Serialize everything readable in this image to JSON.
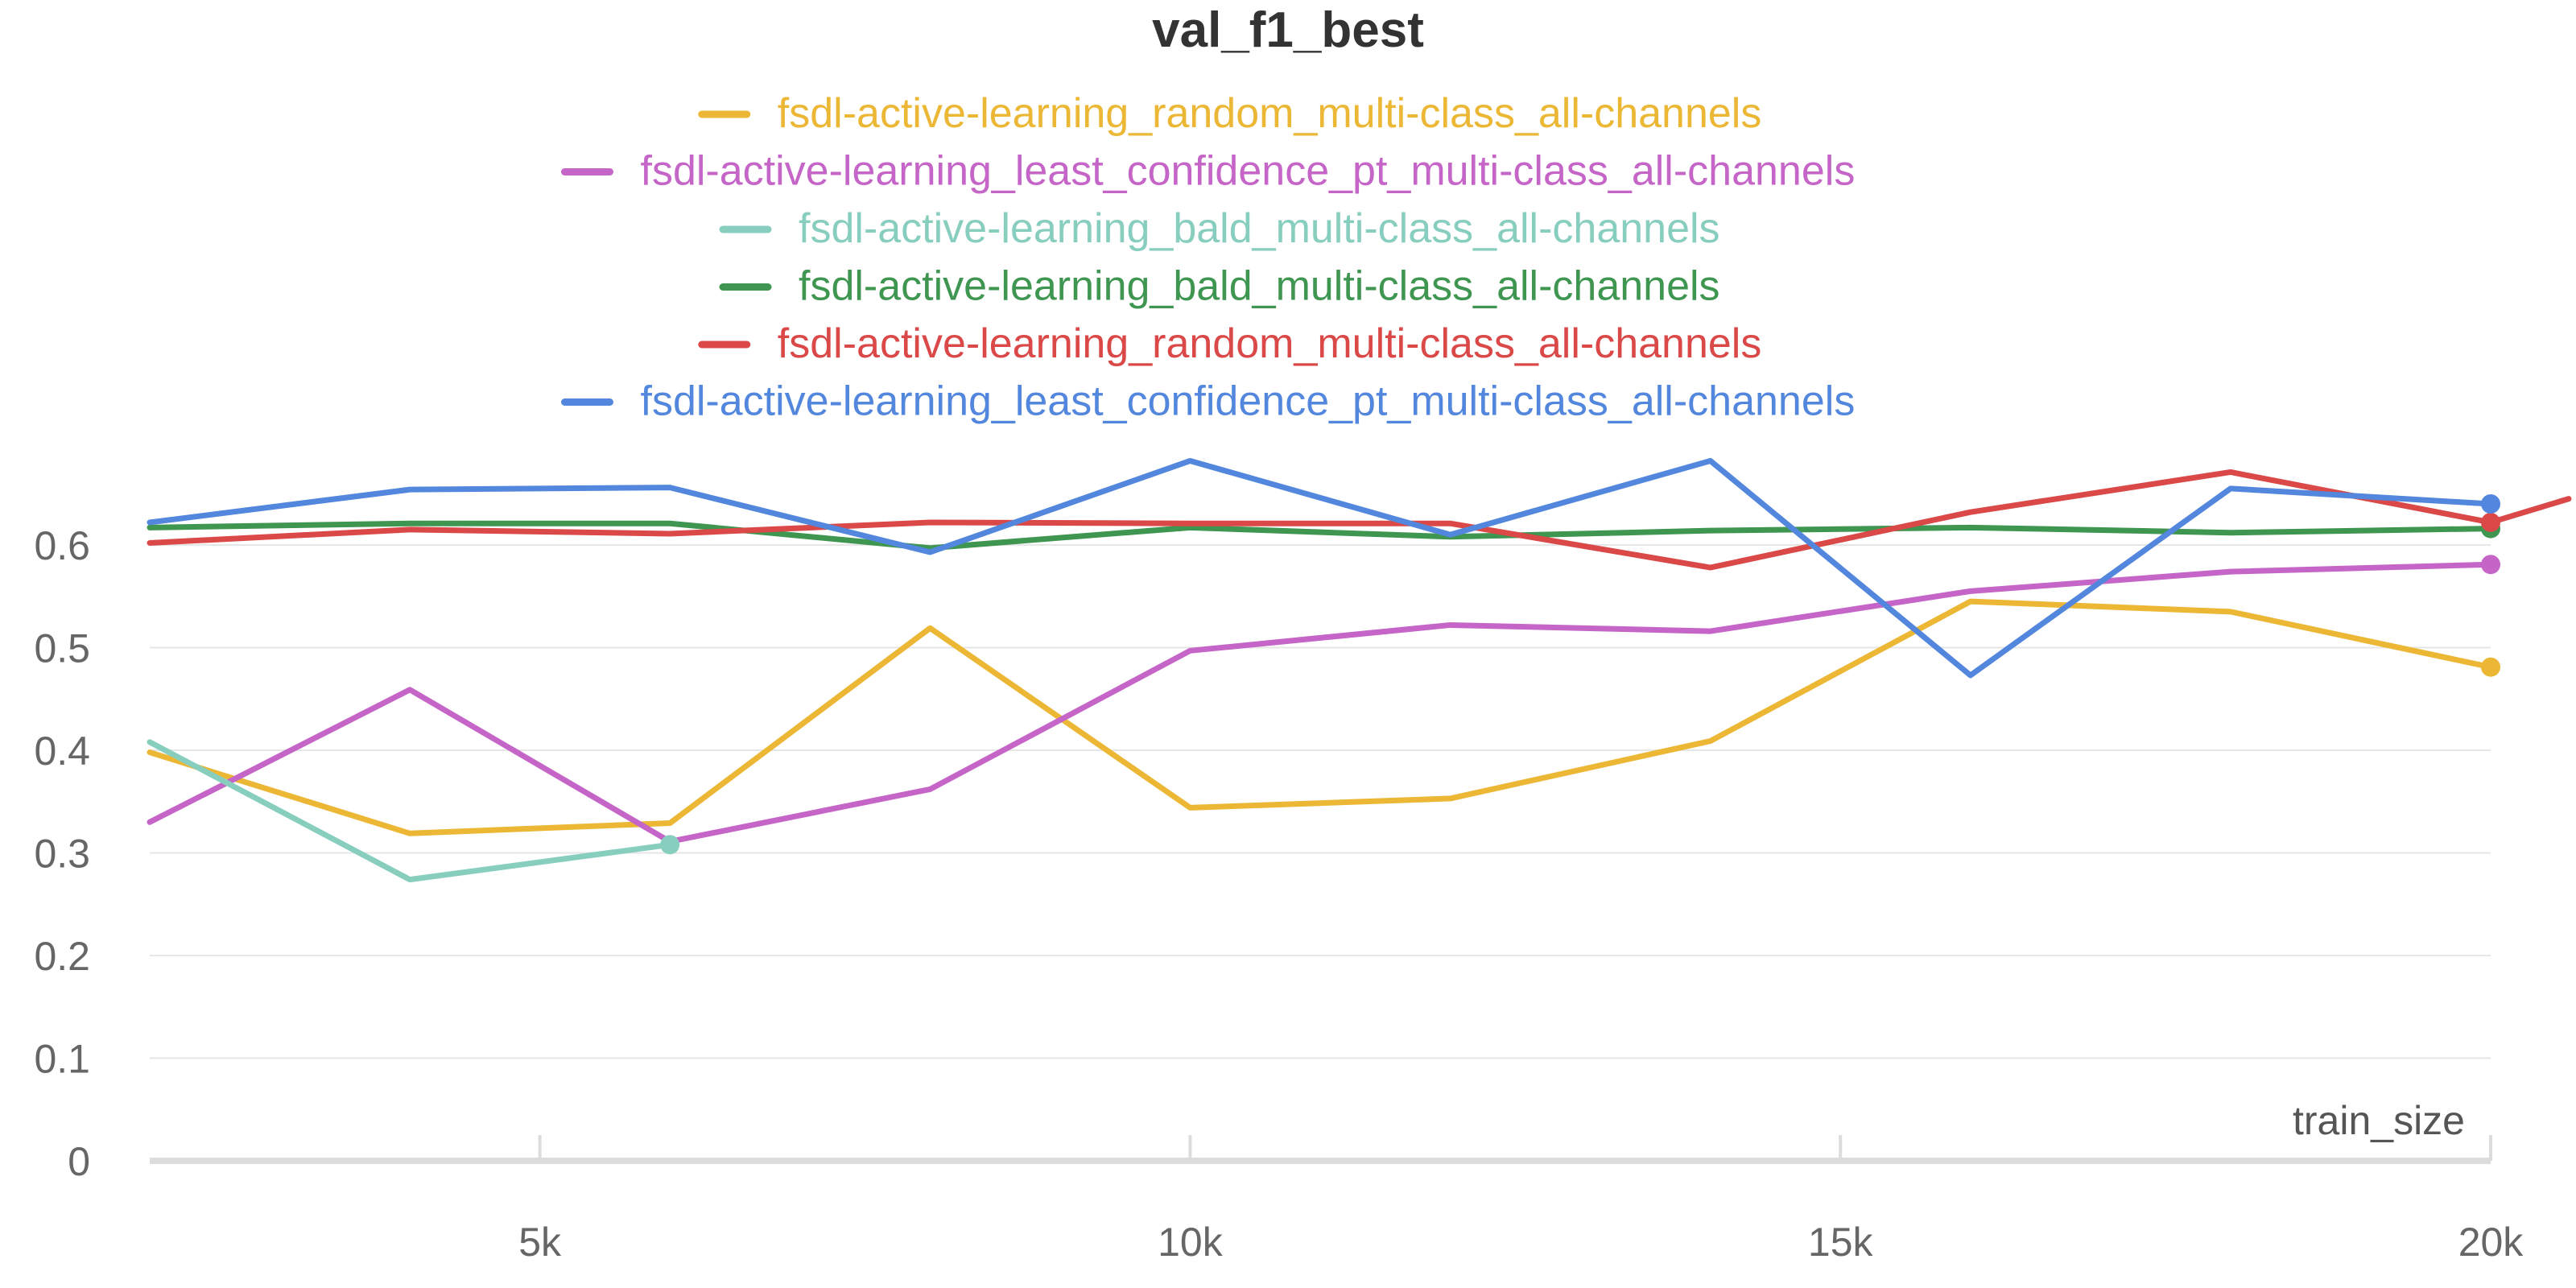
{
  "chart_data": {
    "type": "line",
    "title": "val_f1_best",
    "xlabel": "train_size",
    "ylabel": "",
    "xlim": [
      2000,
      20000
    ],
    "ylim": [
      0,
      0.68
    ],
    "x_ticks": [
      5000,
      10000,
      15000,
      20000
    ],
    "x_tick_labels": [
      "5k",
      "10k",
      "15k",
      "20k"
    ],
    "y_ticks": [
      0,
      0.1,
      0.2,
      0.3,
      0.4,
      0.5,
      0.6
    ],
    "y_tick_labels": [
      "0",
      "0.1",
      "0.2",
      "0.3",
      "0.4",
      "0.5",
      "0.6"
    ],
    "grid": true,
    "legend_position": "top",
    "series": [
      {
        "name": "fsdl-active-learning_random_multi-class_all-channels",
        "color": "#EBB734",
        "x": [
          2000,
          4000,
          6000,
          8000,
          10000,
          12000,
          14000,
          16000,
          18000,
          20000
        ],
        "values": [
          0.398,
          0.319,
          0.329,
          0.519,
          0.344,
          0.353,
          0.409,
          0.545,
          0.535,
          0.481
        ]
      },
      {
        "name": "fsdl-active-learning_least_confidence_pt_multi-class_all-channels",
        "color": "#C565C7",
        "x": [
          2000,
          4000,
          6000,
          8000,
          10000,
          12000,
          14000,
          16000,
          18000,
          20000
        ],
        "values": [
          0.33,
          0.459,
          0.311,
          0.362,
          0.497,
          0.522,
          0.516,
          0.555,
          0.574,
          0.581
        ]
      },
      {
        "name": "fsdl-active-learning_bald_multi-class_all-channels",
        "color": "#87CEBF",
        "x": [
          2000,
          4000,
          6000
        ],
        "values": [
          0.408,
          0.274,
          0.308
        ]
      },
      {
        "name": "fsdl-active-learning_bald_multi-class_all-channels",
        "color": "#3E9651",
        "x": [
          2000,
          4000,
          6000,
          8000,
          10000,
          12000,
          14000,
          16000,
          18000,
          20000
        ],
        "values": [
          0.617,
          0.621,
          0.621,
          0.597,
          0.617,
          0.608,
          0.614,
          0.617,
          0.612,
          0.616
        ]
      },
      {
        "name": "fsdl-active-learning_random_multi-class_all-channels",
        "color": "#DA4848",
        "x": [
          2000,
          4000,
          6000,
          8000,
          10000,
          12000,
          14000,
          16000,
          18000,
          20000,
          20600
        ],
        "values": [
          0.602,
          0.615,
          0.611,
          0.622,
          0.621,
          0.621,
          0.578,
          0.632,
          0.671,
          0.622,
          0.645
        ]
      },
      {
        "name": "fsdl-active-learning_least_confidence_pt_multi-class_all-channels",
        "color": "#5387DD",
        "x": [
          2000,
          4000,
          6000,
          8000,
          10000,
          12000,
          14000,
          16000,
          18000,
          20000
        ],
        "values": [
          0.622,
          0.654,
          0.656,
          0.593,
          0.682,
          0.61,
          0.682,
          0.473,
          0.655,
          0.64
        ]
      }
    ]
  }
}
